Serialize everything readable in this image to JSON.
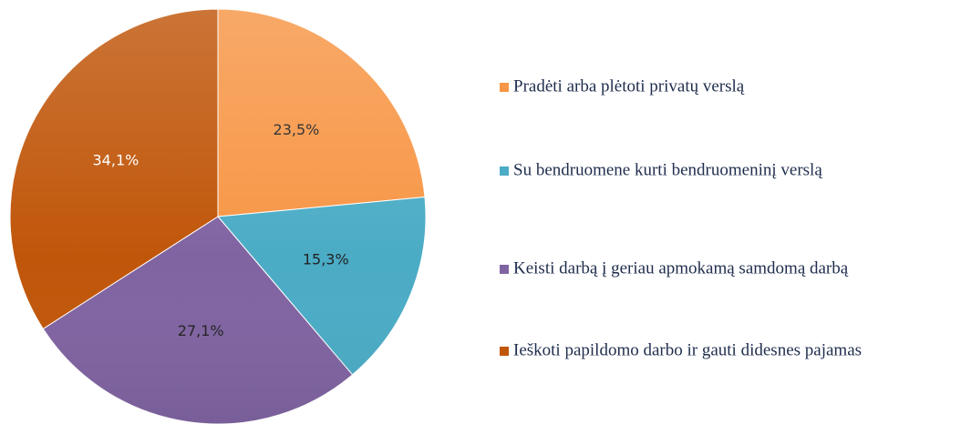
{
  "chart_data": {
    "type": "pie",
    "categories": [
      "Pradėti arba plėtoti privatų verslą",
      "Su bendruomene kurti bendruomeninį verslą",
      "Keisti darbą į geriau apmokamą samdomą darbą",
      "Ieškoti papildomo darbo ir gauti didesnes pajamas"
    ],
    "values": [
      23.5,
      15.3,
      27.1,
      34.1
    ],
    "value_labels": [
      "23,5%",
      "15,3%",
      "27,1%",
      "34,1%"
    ],
    "colors": [
      "#f79646",
      "#4bacc6",
      "#8064a2",
      "#c0560a"
    ],
    "label_colors": [
      "#222222",
      "#222222",
      "#222222",
      "#ffffff"
    ],
    "legend": "right"
  }
}
